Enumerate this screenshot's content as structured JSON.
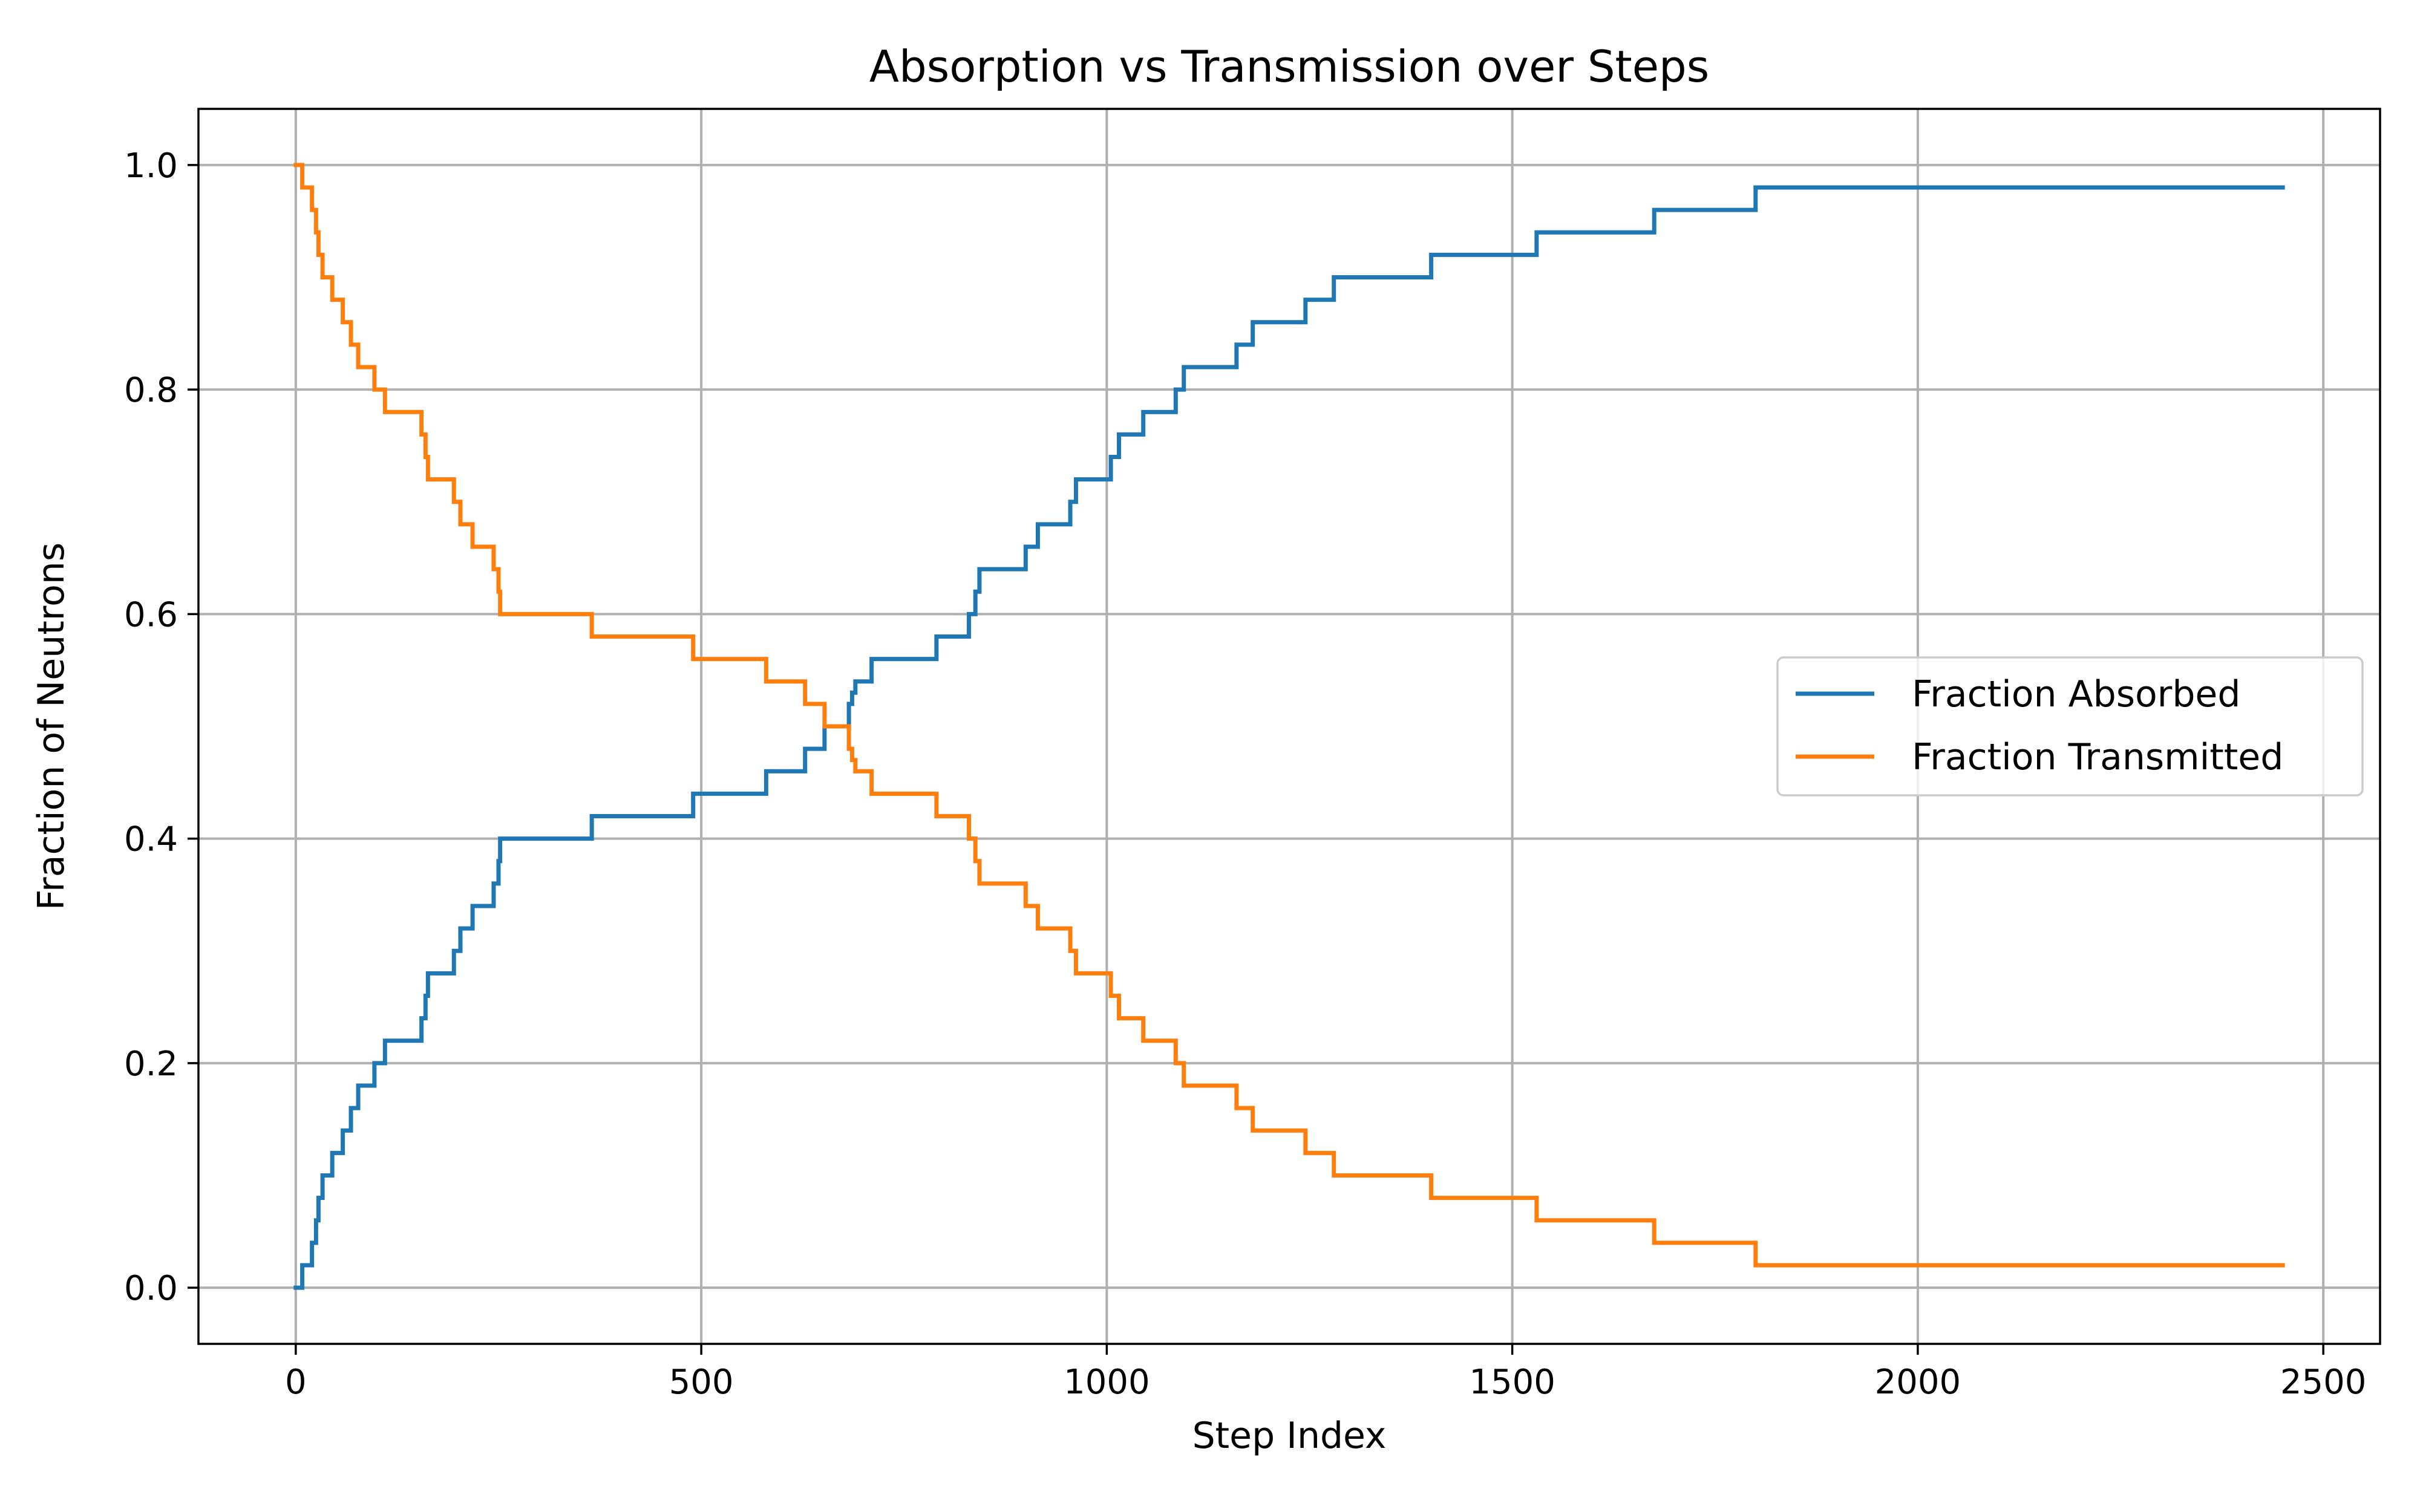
{
  "chart_data": {
    "type": "line",
    "title": "Absorption vs Transmission over Steps",
    "xlabel": "Step Index",
    "ylabel": "Fraction of Neutrons",
    "xlim": [
      -120,
      2570
    ],
    "ylim": [
      -0.05,
      1.05
    ],
    "xticks": [
      0,
      500,
      1000,
      1500,
      2000,
      2500
    ],
    "yticks": [
      0.0,
      0.2,
      0.4,
      0.6,
      0.8,
      1.0
    ],
    "xtick_labels": [
      "0",
      "500",
      "1000",
      "1500",
      "2000",
      "2500"
    ],
    "ytick_labels": [
      "0.0",
      "0.2",
      "0.4",
      "0.6",
      "0.8",
      "1.0"
    ],
    "grid": true,
    "legend_position": "center-right",
    "series": [
      {
        "name": "Fraction Absorbed",
        "color": "#1f77b4",
        "step": "post",
        "x": [
          0,
          8,
          20,
          25,
          28,
          33,
          45,
          58,
          68,
          77,
          97,
          110,
          130,
          155,
          160,
          163,
          195,
          203,
          208,
          218,
          244,
          250,
          252,
          365,
          490,
          580,
          628,
          652,
          682,
          686,
          690,
          710,
          790,
          830,
          838,
          843,
          900,
          915,
          955,
          962,
          1005,
          1015,
          1045,
          1075,
          1085,
          1095,
          1160,
          1180,
          1245,
          1280,
          1400,
          1530,
          1675,
          1800,
          2450
        ],
        "y": [
          0.0,
          0.02,
          0.04,
          0.06,
          0.08,
          0.1,
          0.12,
          0.14,
          0.16,
          0.18,
          0.2,
          0.22,
          0.22,
          0.24,
          0.26,
          0.28,
          0.3,
          0.32,
          0.32,
          0.34,
          0.36,
          0.38,
          0.4,
          0.42,
          0.44,
          0.46,
          0.48,
          0.5,
          0.52,
          0.53,
          0.54,
          0.56,
          0.58,
          0.6,
          0.62,
          0.64,
          0.66,
          0.68,
          0.7,
          0.72,
          0.74,
          0.76,
          0.78,
          0.78,
          0.8,
          0.82,
          0.84,
          0.86,
          0.88,
          0.9,
          0.92,
          0.94,
          0.96,
          0.98,
          0.98
        ]
      },
      {
        "name": "Fraction Transmitted",
        "color": "#ff7f0e",
        "step": "post",
        "x": [
          0,
          8,
          20,
          25,
          28,
          33,
          45,
          58,
          68,
          77,
          97,
          110,
          130,
          155,
          160,
          163,
          195,
          203,
          208,
          218,
          244,
          250,
          252,
          365,
          490,
          580,
          628,
          652,
          682,
          686,
          690,
          710,
          790,
          830,
          838,
          843,
          900,
          915,
          955,
          962,
          1005,
          1015,
          1045,
          1075,
          1085,
          1095,
          1160,
          1180,
          1245,
          1280,
          1400,
          1530,
          1675,
          1800,
          2450
        ],
        "y": [
          1.0,
          0.98,
          0.96,
          0.94,
          0.92,
          0.9,
          0.88,
          0.86,
          0.84,
          0.82,
          0.8,
          0.78,
          0.78,
          0.76,
          0.74,
          0.72,
          0.7,
          0.68,
          0.68,
          0.66,
          0.64,
          0.62,
          0.6,
          0.58,
          0.56,
          0.54,
          0.52,
          0.5,
          0.48,
          0.47,
          0.46,
          0.44,
          0.42,
          0.4,
          0.38,
          0.36,
          0.34,
          0.32,
          0.3,
          0.28,
          0.26,
          0.24,
          0.22,
          0.22,
          0.2,
          0.18,
          0.16,
          0.14,
          0.12,
          0.1,
          0.08,
          0.06,
          0.04,
          0.02,
          0.02
        ]
      }
    ]
  }
}
